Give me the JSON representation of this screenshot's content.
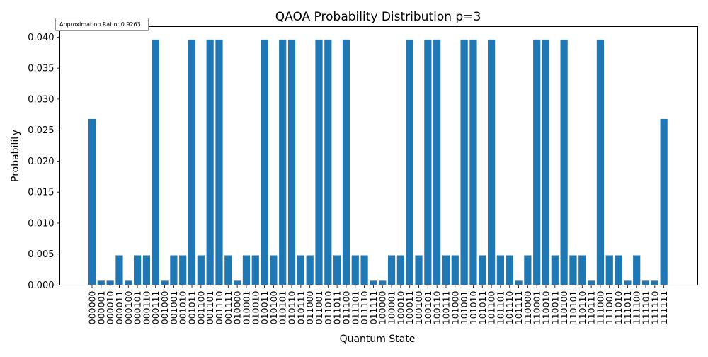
{
  "chart_data": {
    "type": "bar",
    "title": "QAOA Probability Distribution p=3",
    "xlabel": "Quantum State",
    "ylabel": "Probability",
    "annotation": "Approximation Ratio: 0.9263",
    "ylim": [
      0,
      0.0417
    ],
    "yticks": [
      "0.000",
      "0.005",
      "0.010",
      "0.015",
      "0.020",
      "0.025",
      "0.030",
      "0.035",
      "0.040"
    ],
    "bar_color": "#1f77b4",
    "grid": false,
    "categories": [
      "000000",
      "000001",
      "000010",
      "000011",
      "000100",
      "000101",
      "000110",
      "000111",
      "001000",
      "001001",
      "001010",
      "001011",
      "001100",
      "001101",
      "001110",
      "001111",
      "010000",
      "010001",
      "010010",
      "010011",
      "010100",
      "010101",
      "010110",
      "010111",
      "011000",
      "011001",
      "011010",
      "011011",
      "011100",
      "011101",
      "011110",
      "011111",
      "100000",
      "100001",
      "100010",
      "100011",
      "100100",
      "100101",
      "100110",
      "100111",
      "101000",
      "101001",
      "101010",
      "101011",
      "101100",
      "101101",
      "101110",
      "101111",
      "110000",
      "110001",
      "110010",
      "110011",
      "110100",
      "110101",
      "110110",
      "110111",
      "111000",
      "111001",
      "111010",
      "111011",
      "111100",
      "111101",
      "111110",
      "111111"
    ],
    "values": [
      0.0268,
      0.0007,
      0.0007,
      0.0048,
      0.0007,
      0.0048,
      0.0048,
      0.0396,
      0.0007,
      0.0048,
      0.0048,
      0.0396,
      0.0048,
      0.0396,
      0.0396,
      0.0048,
      0.0007,
      0.0048,
      0.0048,
      0.0396,
      0.0048,
      0.0396,
      0.0396,
      0.0048,
      0.0048,
      0.0396,
      0.0396,
      0.0048,
      0.0396,
      0.0048,
      0.0048,
      0.0007,
      0.0007,
      0.0048,
      0.0048,
      0.0396,
      0.0048,
      0.0396,
      0.0396,
      0.0048,
      0.0048,
      0.0396,
      0.0396,
      0.0048,
      0.0396,
      0.0048,
      0.0048,
      0.0007,
      0.0048,
      0.0396,
      0.0396,
      0.0048,
      0.0396,
      0.0048,
      0.0048,
      0.0007,
      0.0396,
      0.0048,
      0.0048,
      0.0007,
      0.0048,
      0.0007,
      0.0007,
      0.0268
    ]
  }
}
